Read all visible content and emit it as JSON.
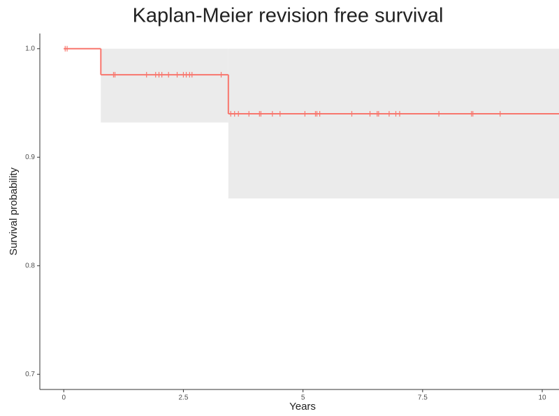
{
  "chart_data": {
    "type": "survival",
    "title": "Kaplan-Meier revision free survival",
    "x_label": "Years",
    "y_label": "Survival probability",
    "xlim": [
      -0.5,
      10.35
    ],
    "ylim": [
      0.686,
      1.014
    ],
    "xticks": [
      0,
      2.5,
      5,
      7.5,
      10
    ],
    "yticks": [
      {
        "value": 0.7,
        "label": "0.7"
      },
      {
        "value": 0.8,
        "label": "0.8"
      },
      {
        "value": 0.9,
        "label": "0.9"
      },
      {
        "value": 1,
        "label": "1.0"
      }
    ],
    "series": [
      {
        "color": "#f8766d",
        "x": [
          0,
          0.775,
          3.44
        ],
        "values": [
          1.0,
          0.976,
          0.94
        ],
        "band": {
          "color": "#ebebeb",
          "x": [
            0.775,
            3.44
          ],
          "upper": [
            1.0,
            1.0
          ],
          "lower": [
            0.932,
            0.862
          ]
        },
        "censored": {
          "x": [
            0.03,
            0.07,
            1.04,
            1.07,
            1.73,
            1.92,
            1.99,
            2.05,
            2.19,
            2.37,
            2.5,
            2.56,
            2.63,
            2.68,
            3.29,
            3.49,
            3.57,
            3.65,
            3.87,
            4.09,
            4.12,
            4.36,
            4.52,
            5.04,
            5.26,
            5.29,
            5.35,
            6.02,
            6.4,
            6.55,
            6.58,
            6.8,
            6.94,
            7.02,
            7.84,
            8.52,
            8.55,
            9.12
          ],
          "values": [
            1.0,
            1.0,
            0.976,
            0.976,
            0.976,
            0.976,
            0.976,
            0.976,
            0.976,
            0.976,
            0.976,
            0.976,
            0.976,
            0.976,
            0.976,
            0.94,
            0.94,
            0.94,
            0.94,
            0.94,
            0.94,
            0.94,
            0.94,
            0.94,
            0.94,
            0.94,
            0.94,
            0.94,
            0.94,
            0.94,
            0.94,
            0.94,
            0.94,
            0.94,
            0.94,
            0.94,
            0.94,
            0.94
          ]
        }
      }
    ]
  }
}
